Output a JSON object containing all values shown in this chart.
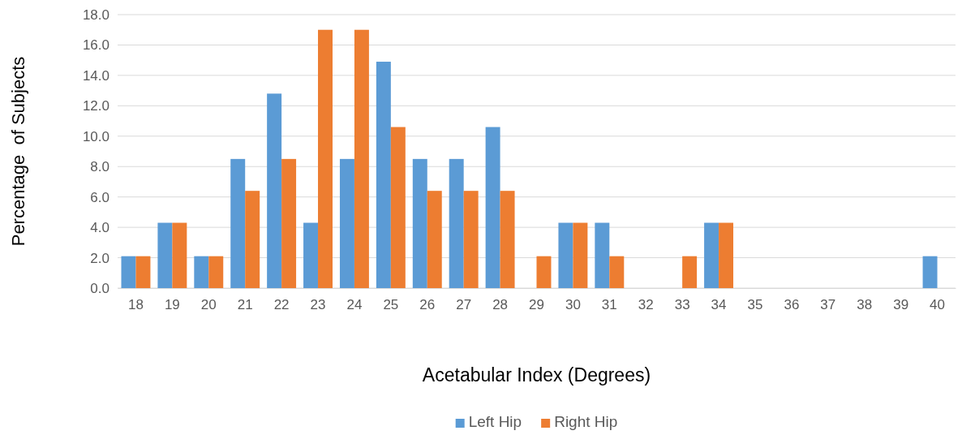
{
  "chart_data": {
    "type": "bar",
    "xlabel": "Acetabular Index (Degrees)",
    "ylabel": "Percentage  of Subjects",
    "categories": [
      "18",
      "19",
      "20",
      "21",
      "22",
      "23",
      "24",
      "25",
      "26",
      "27",
      "28",
      "29",
      "30",
      "31",
      "32",
      "33",
      "34",
      "35",
      "36",
      "37",
      "38",
      "39",
      "40"
    ],
    "series": [
      {
        "name": "Left Hip",
        "color": "#5b9bd5",
        "values": [
          2.1,
          4.3,
          2.1,
          8.5,
          12.8,
          4.3,
          8.5,
          14.9,
          8.5,
          8.5,
          10.6,
          0,
          4.3,
          4.3,
          0,
          0,
          4.3,
          0,
          0,
          0,
          0,
          0,
          2.1
        ]
      },
      {
        "name": "Right Hip",
        "color": "#ed7d31",
        "values": [
          2.1,
          4.3,
          2.1,
          6.4,
          8.5,
          17.0,
          17.0,
          10.6,
          6.4,
          6.4,
          6.4,
          2.1,
          4.3,
          2.1,
          0,
          2.1,
          4.3,
          0,
          0,
          0,
          0,
          0,
          0
        ]
      }
    ],
    "ylim": [
      0,
      18
    ],
    "yticks": [
      {
        "value": 0,
        "label": "0.0"
      },
      {
        "value": 2,
        "label": "2.0"
      },
      {
        "value": 4,
        "label": "4.0"
      },
      {
        "value": 6,
        "label": "6.0"
      },
      {
        "value": 8,
        "label": "8.0"
      },
      {
        "value": 10,
        "label": "10.0"
      },
      {
        "value": 12,
        "label": "12.0"
      },
      {
        "value": 14,
        "label": "14.0"
      },
      {
        "value": 16,
        "label": "16.0"
      },
      {
        "value": 18,
        "label": "18.0"
      }
    ],
    "grid": "y",
    "legend": "bottom"
  }
}
